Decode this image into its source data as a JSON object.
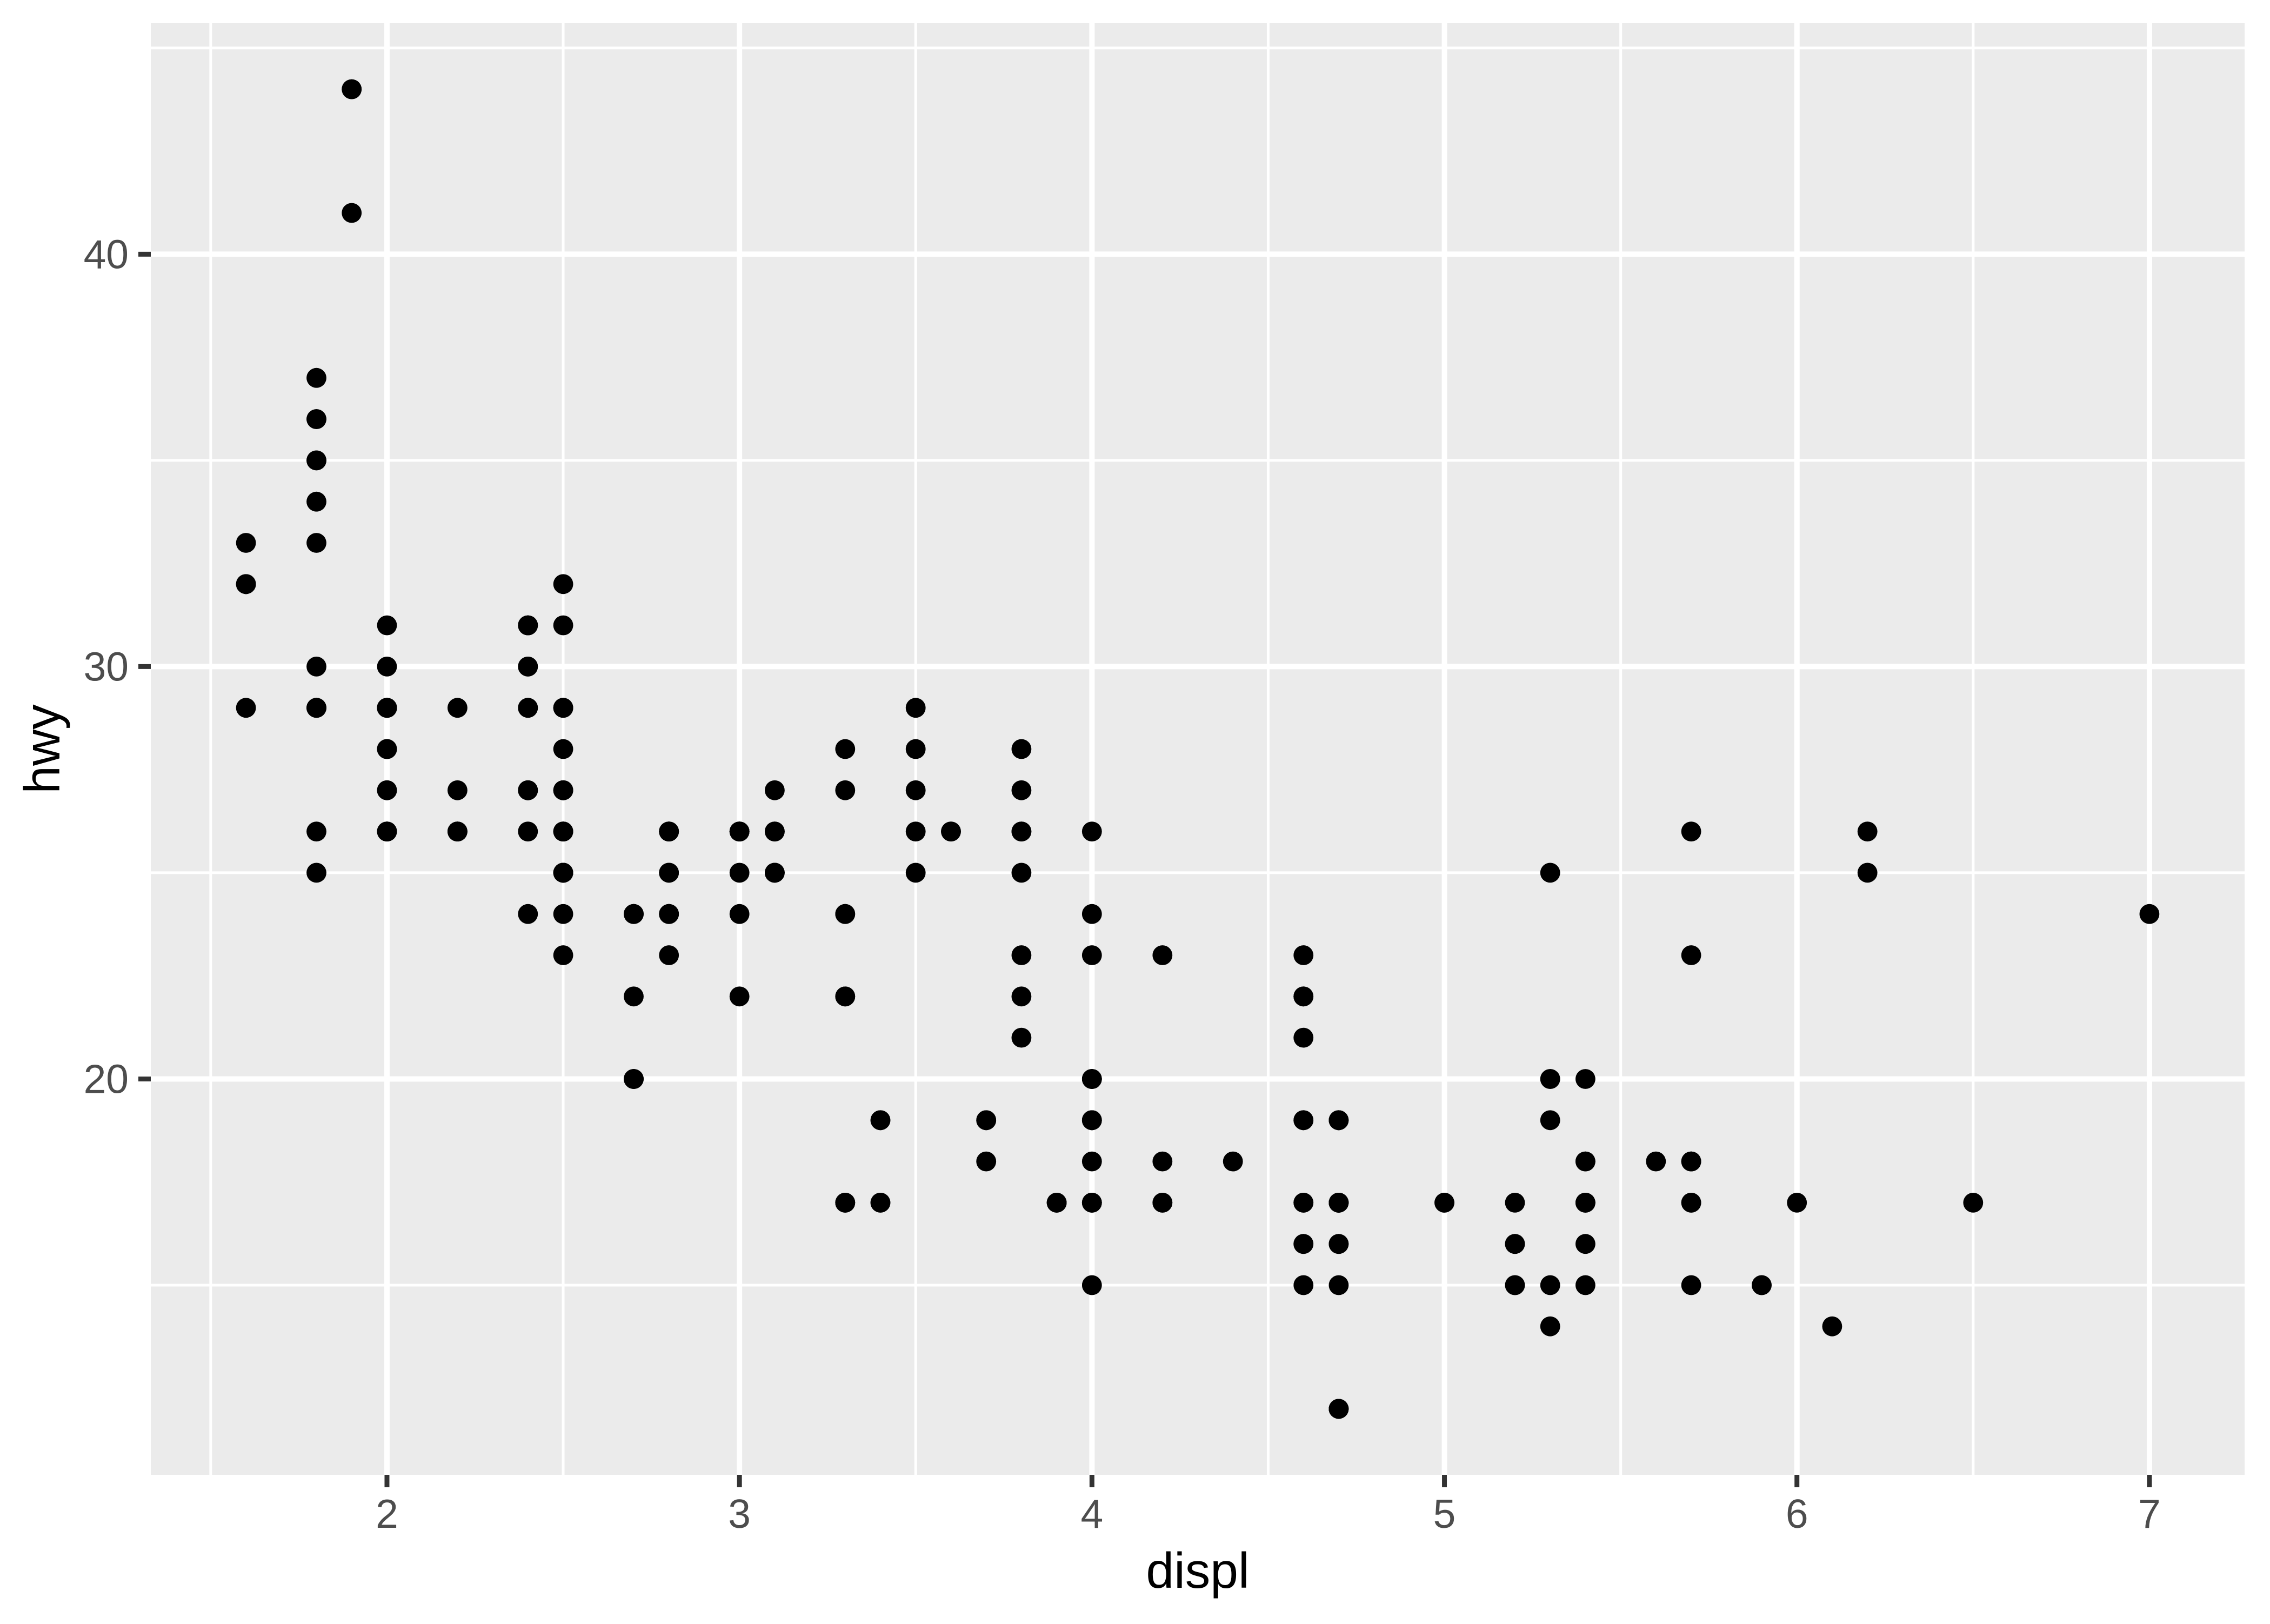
{
  "page": {
    "background": "#FFFFFF"
  },
  "chart_data": {
    "type": "scatter",
    "title": "",
    "xlabel": "displ",
    "ylabel": "hwy",
    "xlim": [
      1.33,
      7.27
    ],
    "ylim": [
      10.4,
      45.6
    ],
    "x_major_ticks": [
      2,
      3,
      4,
      5,
      6,
      7
    ],
    "x_tick_labels": [
      "2",
      "3",
      "4",
      "5",
      "6",
      "7"
    ],
    "y_major_ticks": [
      20,
      30,
      40
    ],
    "y_tick_labels": [
      "20",
      "30",
      "40"
    ],
    "x_minor_ticks": [
      1.5,
      2.5,
      3.5,
      4.5,
      5.5,
      6.5
    ],
    "y_minor_ticks": [
      15,
      25,
      35,
      45
    ],
    "grid": "on",
    "legend": "none",
    "point_radius_px": 18.4,
    "colors": {
      "figure_background": "#FFFFFF",
      "panel_background": "#EBEBEB",
      "gridline": "#FFFFFF",
      "point": "#000000",
      "tick_mark": "#333333",
      "tick_label": "#4D4D4D",
      "axis_title": "#000000"
    },
    "x": [
      1.8,
      1.8,
      2.0,
      2.0,
      2.8,
      2.8,
      3.1,
      1.8,
      1.8,
      2.0,
      2.0,
      2.8,
      2.8,
      3.1,
      3.1,
      2.8,
      3.1,
      4.2,
      5.3,
      5.3,
      5.3,
      5.7,
      6.0,
      5.7,
      5.7,
      6.2,
      6.2,
      7.0,
      5.3,
      5.3,
      5.7,
      6.5,
      2.4,
      2.4,
      3.1,
      3.5,
      3.6,
      2.4,
      3.0,
      3.3,
      3.3,
      3.3,
      3.3,
      3.3,
      3.8,
      3.8,
      3.8,
      4.0,
      3.7,
      3.7,
      3.9,
      3.9,
      4.7,
      4.7,
      4.7,
      5.2,
      5.2,
      3.9,
      4.7,
      4.7,
      4.7,
      5.2,
      5.7,
      5.9,
      4.7,
      4.7,
      4.7,
      4.7,
      4.7,
      4.7,
      5.2,
      5.2,
      5.7,
      5.9,
      4.6,
      5.4,
      5.4,
      4.0,
      4.0,
      4.0,
      4.0,
      4.6,
      5.0,
      4.2,
      4.2,
      4.6,
      4.6,
      4.6,
      5.4,
      5.4,
      3.8,
      3.8,
      4.0,
      4.0,
      4.6,
      4.6,
      4.6,
      4.6,
      5.4,
      1.6,
      1.6,
      1.6,
      1.6,
      1.6,
      1.8,
      1.8,
      1.8,
      2.0,
      2.4,
      2.4,
      2.4,
      2.4,
      2.5,
      2.5,
      3.3,
      2.0,
      2.0,
      2.0,
      2.0,
      2.7,
      2.7,
      2.7,
      3.0,
      3.7,
      4.0,
      4.7,
      4.7,
      4.7,
      5.7,
      6.1,
      4.0,
      4.2,
      4.4,
      4.6,
      5.4,
      5.4,
      5.4,
      4.0,
      4.0,
      4.6,
      5.0,
      2.4,
      2.4,
      2.5,
      2.5,
      3.5,
      3.5,
      3.0,
      3.0,
      3.5,
      3.3,
      3.3,
      4.0,
      5.6,
      3.1,
      3.8,
      3.8,
      3.8,
      5.3,
      2.5,
      2.5,
      2.5,
      2.5,
      2.5,
      2.5,
      2.2,
      2.2,
      2.5,
      2.5,
      2.5,
      2.5,
      2.5,
      2.5,
      2.7,
      2.7,
      3.4,
      3.4,
      4.0,
      4.7,
      2.2,
      2.2,
      2.4,
      2.4,
      3.0,
      3.0,
      3.5,
      2.2,
      2.2,
      2.4,
      2.4,
      3.0,
      3.0,
      3.3,
      1.8,
      1.8,
      1.8,
      1.8,
      1.8,
      4.7,
      5.7,
      2.7,
      2.7,
      2.7,
      3.4,
      3.4,
      4.0,
      4.0,
      2.0,
      2.0,
      2.0,
      2.0,
      2.8,
      1.9,
      2.0,
      2.0,
      2.0,
      2.0,
      2.5,
      2.5,
      2.8,
      2.8,
      1.9,
      1.9,
      2.0,
      2.0,
      2.5,
      2.5,
      1.8,
      1.8,
      2.0,
      2.0,
      2.8,
      2.8,
      3.6
    ],
    "y": [
      29,
      29,
      31,
      30,
      26,
      26,
      27,
      26,
      25,
      28,
      27,
      25,
      25,
      25,
      25,
      24,
      25,
      23,
      20,
      15,
      20,
      17,
      17,
      26,
      23,
      26,
      25,
      24,
      19,
      14,
      15,
      17,
      27,
      30,
      26,
      29,
      26,
      24,
      24,
      22,
      22,
      24,
      24,
      17,
      22,
      21,
      23,
      23,
      19,
      18,
      17,
      17,
      19,
      19,
      12,
      17,
      15,
      17,
      17,
      12,
      17,
      16,
      18,
      15,
      16,
      12,
      17,
      17,
      16,
      12,
      15,
      16,
      17,
      15,
      17,
      17,
      18,
      17,
      19,
      17,
      19,
      19,
      17,
      17,
      17,
      16,
      16,
      17,
      15,
      17,
      26,
      25,
      26,
      24,
      21,
      22,
      23,
      22,
      20,
      33,
      32,
      32,
      29,
      32,
      34,
      36,
      36,
      29,
      26,
      27,
      30,
      31,
      26,
      26,
      28,
      26,
      29,
      28,
      27,
      24,
      24,
      24,
      22,
      19,
      20,
      17,
      12,
      19,
      18,
      14,
      15,
      18,
      18,
      15,
      17,
      16,
      18,
      17,
      19,
      19,
      17,
      29,
      27,
      31,
      32,
      27,
      26,
      26,
      25,
      25,
      17,
      17,
      20,
      18,
      26,
      26,
      27,
      28,
      25,
      25,
      24,
      27,
      25,
      26,
      23,
      26,
      26,
      25,
      25,
      27,
      25,
      27,
      26,
      20,
      20,
      19,
      17,
      20,
      17,
      26,
      29,
      31,
      31,
      26,
      26,
      28,
      26,
      27,
      29,
      31,
      26,
      26,
      27,
      30,
      33,
      35,
      37,
      35,
      15,
      18,
      20,
      20,
      22,
      17,
      19,
      18,
      20,
      29,
      26,
      29,
      29,
      24,
      44,
      29,
      26,
      29,
      29,
      29,
      29,
      23,
      24,
      44,
      41,
      29,
      26,
      28,
      29,
      29,
      29,
      28,
      29,
      26,
      26,
      26
    ]
  }
}
